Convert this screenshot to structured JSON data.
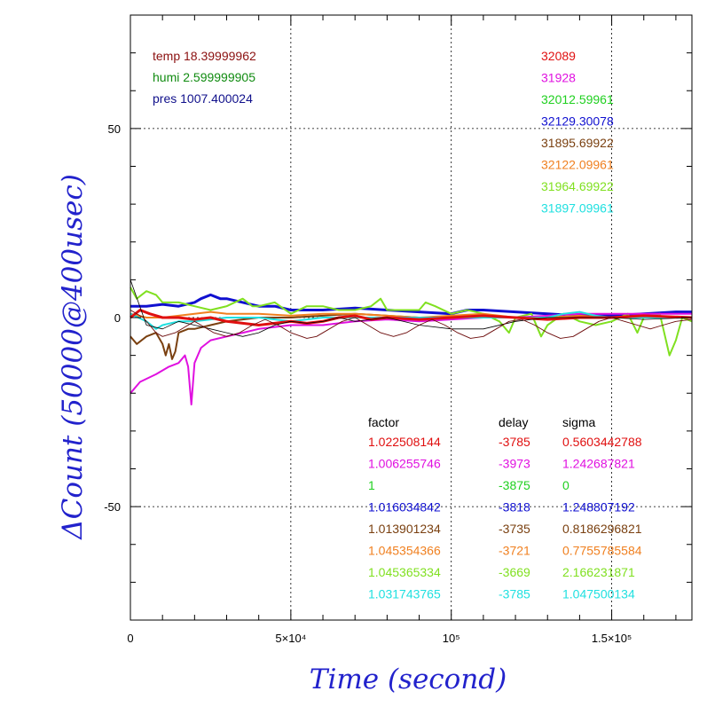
{
  "chart_data": {
    "type": "line",
    "xlabel": "Time (second)",
    "ylabel": "ΔCount (50000@400usec)",
    "xlim": [
      0,
      175000
    ],
    "ylim": [
      -80,
      80
    ],
    "grid": true,
    "x_ticks": [
      {
        "value": 0,
        "label": "0"
      },
      {
        "value": 50000,
        "label": "5×10⁴"
      },
      {
        "value": 100000,
        "label": "10⁵"
      },
      {
        "value": 150000,
        "label": "1.5×10⁵"
      }
    ],
    "y_ticks": [
      {
        "value": 50,
        "label": "50"
      },
      {
        "value": 0,
        "label": "0"
      },
      {
        "value": -50,
        "label": "-50"
      }
    ],
    "env": [
      {
        "text": "temp 18.39999962",
        "color": "#8b1010"
      },
      {
        "text": "humi 2.599999905",
        "color": "#108b10"
      },
      {
        "text": "pres 1007.400024",
        "color": "#10108b"
      }
    ],
    "counts": [
      {
        "text": "32089",
        "color": "#e01010"
      },
      {
        "text": "31928",
        "color": "#e010e0"
      },
      {
        "text": "32012.59961",
        "color": "#20d020"
      },
      {
        "text": "32129.30078",
        "color": "#1010d0"
      },
      {
        "text": "31895.69922",
        "color": "#7a4010"
      },
      {
        "text": "32122.09961",
        "color": "#f08020"
      },
      {
        "text": "31964.69922",
        "color": "#80e020"
      },
      {
        "text": "31897.09961",
        "color": "#20e0e0"
      }
    ],
    "table_headers": [
      "factor",
      "delay",
      "sigma"
    ],
    "table_rows": [
      {
        "factor": "1.022508144",
        "delay": "-3785",
        "sigma": "0.5603442788",
        "color": "#e01010"
      },
      {
        "factor": "1.006255746",
        "delay": "-3973",
        "sigma": "1.242687821",
        "color": "#e010e0"
      },
      {
        "factor": "1",
        "delay": "-3875",
        "sigma": "0",
        "color": "#20d020"
      },
      {
        "factor": "1.016034842",
        "delay": "-3818",
        "sigma": "1.248807192",
        "color": "#1010d0"
      },
      {
        "factor": "1.013901234",
        "delay": "-3735",
        "sigma": "0.8186296821",
        "color": "#7a4010"
      },
      {
        "factor": "1.045354366",
        "delay": "-3721",
        "sigma": "0.7755785584",
        "color": "#f08020"
      },
      {
        "factor": "1.045365334",
        "delay": "-3669",
        "sigma": "2.166231871",
        "color": "#80e020"
      },
      {
        "factor": "1.031743765",
        "delay": "-3785",
        "sigma": "1.047500134",
        "color": "#20e0e0"
      }
    ],
    "series": [
      {
        "color": "#1010d0",
        "width": 3,
        "points": [
          [
            0,
            3
          ],
          [
            5000,
            3
          ],
          [
            10000,
            3.5
          ],
          [
            15000,
            3
          ],
          [
            20000,
            4
          ],
          [
            22000,
            5
          ],
          [
            25000,
            6
          ],
          [
            28000,
            5
          ],
          [
            30000,
            5
          ],
          [
            35000,
            4
          ],
          [
            40000,
            3
          ],
          [
            45000,
            3
          ],
          [
            50000,
            2
          ],
          [
            60000,
            2
          ],
          [
            70000,
            2.5
          ],
          [
            80000,
            2
          ],
          [
            90000,
            1.5
          ],
          [
            100000,
            1
          ],
          [
            105000,
            2
          ],
          [
            110000,
            2
          ],
          [
            120000,
            1.5
          ],
          [
            130000,
            1
          ],
          [
            140000,
            0.5
          ],
          [
            150000,
            0.5
          ],
          [
            160000,
            1
          ],
          [
            170000,
            1.5
          ],
          [
            175000,
            1.5
          ]
        ]
      },
      {
        "color": "#80e020",
        "width": 2,
        "points": [
          [
            0,
            8
          ],
          [
            2000,
            5
          ],
          [
            5000,
            7
          ],
          [
            8000,
            6
          ],
          [
            10000,
            4
          ],
          [
            15000,
            4
          ],
          [
            20000,
            3
          ],
          [
            25000,
            2
          ],
          [
            30000,
            3
          ],
          [
            35000,
            5
          ],
          [
            38000,
            3
          ],
          [
            40000,
            3
          ],
          [
            45000,
            4
          ],
          [
            50000,
            1
          ],
          [
            55000,
            3
          ],
          [
            60000,
            3
          ],
          [
            65000,
            2
          ],
          [
            70000,
            2
          ],
          [
            75000,
            3
          ],
          [
            78000,
            5
          ],
          [
            80000,
            2
          ],
          [
            85000,
            2
          ],
          [
            90000,
            2
          ],
          [
            92000,
            4
          ],
          [
            95000,
            3
          ],
          [
            100000,
            1
          ],
          [
            105000,
            2
          ],
          [
            110000,
            1
          ],
          [
            115000,
            -1
          ],
          [
            118000,
            -4
          ],
          [
            120000,
            0
          ],
          [
            125000,
            1
          ],
          [
            128000,
            -5
          ],
          [
            130000,
            -2
          ],
          [
            135000,
            1
          ],
          [
            140000,
            -1
          ],
          [
            145000,
            -2
          ],
          [
            150000,
            -1
          ],
          [
            155000,
            1
          ],
          [
            158000,
            -4
          ],
          [
            160000,
            0
          ],
          [
            165000,
            1
          ],
          [
            168000,
            -10
          ],
          [
            170000,
            -6
          ],
          [
            172000,
            0
          ],
          [
            175000,
            -1
          ]
        ]
      },
      {
        "color": "#e010e0",
        "width": 2,
        "points": [
          [
            0,
            -20
          ],
          [
            3000,
            -17
          ],
          [
            8000,
            -15
          ],
          [
            12000,
            -13
          ],
          [
            15000,
            -12
          ],
          [
            17000,
            -10
          ],
          [
            18000,
            -13
          ],
          [
            19000,
            -23
          ],
          [
            20000,
            -12
          ],
          [
            22000,
            -8
          ],
          [
            25000,
            -6
          ],
          [
            30000,
            -5
          ],
          [
            35000,
            -4
          ],
          [
            40000,
            -3
          ],
          [
            50000,
            -2
          ],
          [
            60000,
            -2
          ],
          [
            70000,
            -1
          ],
          [
            80000,
            -0.5
          ],
          [
            90000,
            -1
          ],
          [
            100000,
            -0.5
          ],
          [
            110000,
            0
          ],
          [
            120000,
            0
          ],
          [
            130000,
            0.5
          ],
          [
            140000,
            1
          ],
          [
            150000,
            1
          ],
          [
            160000,
            1
          ],
          [
            175000,
            1
          ]
        ]
      },
      {
        "color": "#7a4010",
        "width": 2,
        "points": [
          [
            0,
            -5
          ],
          [
            2000,
            -7
          ],
          [
            5000,
            -5
          ],
          [
            8000,
            -4
          ],
          [
            10000,
            -7
          ],
          [
            11000,
            -10
          ],
          [
            12000,
            -7
          ],
          [
            13000,
            -11
          ],
          [
            14000,
            -9
          ],
          [
            15000,
            -4
          ],
          [
            18000,
            -3
          ],
          [
            20000,
            -3
          ],
          [
            25000,
            -2
          ],
          [
            30000,
            -1
          ],
          [
            40000,
            0
          ],
          [
            50000,
            0
          ],
          [
            60000,
            0.5
          ],
          [
            70000,
            1
          ],
          [
            80000,
            0.5
          ],
          [
            90000,
            0
          ],
          [
            100000,
            0
          ],
          [
            110000,
            0.5
          ],
          [
            120000,
            0
          ],
          [
            130000,
            0
          ],
          [
            140000,
            0
          ],
          [
            150000,
            0
          ],
          [
            160000,
            0.5
          ],
          [
            175000,
            0
          ]
        ]
      },
      {
        "color": "#f08020",
        "width": 2,
        "points": [
          [
            0,
            1
          ],
          [
            5000,
            0
          ],
          [
            10000,
            0
          ],
          [
            15000,
            0.5
          ],
          [
            20000,
            1
          ],
          [
            25000,
            1.5
          ],
          [
            30000,
            1
          ],
          [
            40000,
            1
          ],
          [
            50000,
            0.5
          ],
          [
            60000,
            1
          ],
          [
            70000,
            1
          ],
          [
            80000,
            0.5
          ],
          [
            90000,
            0
          ],
          [
            100000,
            0.5
          ],
          [
            110000,
            1
          ],
          [
            120000,
            0
          ],
          [
            130000,
            0
          ],
          [
            140000,
            0.5
          ],
          [
            150000,
            0
          ],
          [
            160000,
            0.5
          ],
          [
            175000,
            0
          ]
        ]
      },
      {
        "color": "#20e0e0",
        "width": 2,
        "points": [
          [
            0,
            1
          ],
          [
            5000,
            -1
          ],
          [
            8000,
            -3
          ],
          [
            10000,
            -2
          ],
          [
            15000,
            -1
          ],
          [
            20000,
            -1
          ],
          [
            30000,
            0
          ],
          [
            40000,
            0
          ],
          [
            50000,
            -1
          ],
          [
            60000,
            0
          ],
          [
            70000,
            0
          ],
          [
            80000,
            0
          ],
          [
            90000,
            0
          ],
          [
            100000,
            0
          ],
          [
            110000,
            0
          ],
          [
            120000,
            0
          ],
          [
            130000,
            0
          ],
          [
            135000,
            1
          ],
          [
            140000,
            1.5
          ],
          [
            145000,
            0.5
          ],
          [
            150000,
            0
          ],
          [
            160000,
            0
          ],
          [
            175000,
            0
          ]
        ]
      },
      {
        "color": "#e01010",
        "width": 3,
        "points": [
          [
            0,
            0
          ],
          [
            3000,
            2
          ],
          [
            6000,
            1
          ],
          [
            10000,
            0
          ],
          [
            15000,
            0
          ],
          [
            20000,
            -0.5
          ],
          [
            25000,
            0
          ],
          [
            30000,
            -1
          ],
          [
            40000,
            -2
          ],
          [
            45000,
            -1.5
          ],
          [
            50000,
            -1
          ],
          [
            55000,
            -1.5
          ],
          [
            60000,
            -1
          ],
          [
            65000,
            0
          ],
          [
            70000,
            0.5
          ],
          [
            75000,
            -0.5
          ],
          [
            80000,
            0
          ],
          [
            90000,
            -0.5
          ],
          [
            100000,
            0
          ],
          [
            110000,
            0.5
          ],
          [
            120000,
            0
          ],
          [
            130000,
            -0.5
          ],
          [
            140000,
            0
          ],
          [
            150000,
            0
          ],
          [
            160000,
            0.5
          ],
          [
            175000,
            0
          ]
        ]
      },
      {
        "color": "#000000",
        "width": 0.8,
        "points": [
          [
            0,
            10
          ],
          [
            5000,
            -2
          ],
          [
            10000,
            -3
          ],
          [
            15000,
            -1
          ],
          [
            20000,
            -2
          ],
          [
            25000,
            -3
          ],
          [
            30000,
            -4
          ],
          [
            35000,
            -5
          ],
          [
            40000,
            -4
          ],
          [
            45000,
            -2
          ],
          [
            50000,
            -1
          ],
          [
            55000,
            -1.5
          ],
          [
            60000,
            -1
          ],
          [
            65000,
            0
          ],
          [
            70000,
            -1
          ],
          [
            75000,
            -0.5
          ],
          [
            80000,
            0
          ],
          [
            90000,
            -2
          ],
          [
            100000,
            -3
          ],
          [
            110000,
            -3
          ],
          [
            120000,
            -1
          ],
          [
            130000,
            0
          ],
          [
            140000,
            0
          ],
          [
            150000,
            0
          ],
          [
            160000,
            -0.5
          ],
          [
            175000,
            0
          ]
        ]
      },
      {
        "color": "#6b0a0a",
        "width": 0.9,
        "points": [
          [
            0,
            2
          ],
          [
            4000,
            0
          ],
          [
            8000,
            -4
          ],
          [
            10000,
            -5
          ],
          [
            14000,
            -4
          ],
          [
            18000,
            -2
          ],
          [
            20000,
            -1
          ],
          [
            22000,
            -2
          ],
          [
            26000,
            -4
          ],
          [
            30000,
            -5
          ],
          [
            34000,
            -4
          ],
          [
            38000,
            -2
          ],
          [
            42000,
            -0.5
          ],
          [
            46000,
            -2
          ],
          [
            50000,
            -4
          ],
          [
            55000,
            -5.5
          ],
          [
            58000,
            -5
          ],
          [
            62000,
            -3
          ],
          [
            66000,
            -1
          ],
          [
            70000,
            0
          ],
          [
            74000,
            -2
          ],
          [
            78000,
            -4
          ],
          [
            82000,
            -5
          ],
          [
            86000,
            -4
          ],
          [
            90000,
            -2
          ],
          [
            94000,
            -0.5
          ],
          [
            98000,
            -2
          ],
          [
            102000,
            -4
          ],
          [
            106000,
            -5.5
          ],
          [
            110000,
            -5
          ],
          [
            114000,
            -3
          ],
          [
            118000,
            -1
          ],
          [
            122000,
            -0.5
          ],
          [
            126000,
            -2
          ],
          [
            130000,
            -4
          ],
          [
            134000,
            -5.5
          ],
          [
            138000,
            -5
          ],
          [
            142000,
            -3
          ],
          [
            146000,
            -1
          ],
          [
            150000,
            0
          ],
          [
            154000,
            -1
          ],
          [
            158000,
            -2
          ],
          [
            162000,
            -3
          ],
          [
            166000,
            -2
          ],
          [
            170000,
            -1
          ],
          [
            175000,
            -0.5
          ]
        ]
      }
    ]
  }
}
